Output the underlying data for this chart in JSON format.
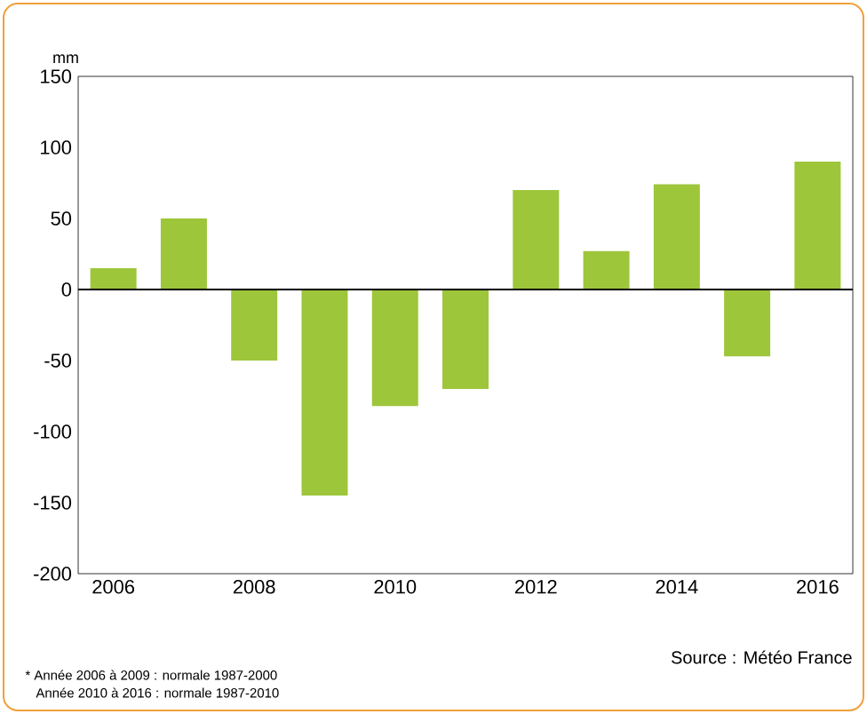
{
  "chart_data": {
    "type": "bar",
    "ylabel": "mm",
    "categories": [
      "2006",
      null,
      "2008",
      null,
      "2010",
      null,
      "2012",
      null,
      "2014",
      null,
      "2016"
    ],
    "values": [
      15,
      50,
      -50,
      -145,
      -82,
      -70,
      70,
      27,
      74,
      -47,
      90
    ],
    "color": "#9dc63b",
    "ylim": [
      -200,
      150
    ],
    "yticks": [
      -200,
      -150,
      -100,
      -50,
      0,
      50,
      100,
      150
    ],
    "ref_lines": [
      {
        "axis": "y",
        "value": 0,
        "color": "#000000"
      }
    ],
    "annotations": [
      "Source : Météo France",
      "* Année 2006 à 2009 : normale 1987-2000",
      "Année 2010 à 2016 : normale 1987-2010"
    ]
  }
}
